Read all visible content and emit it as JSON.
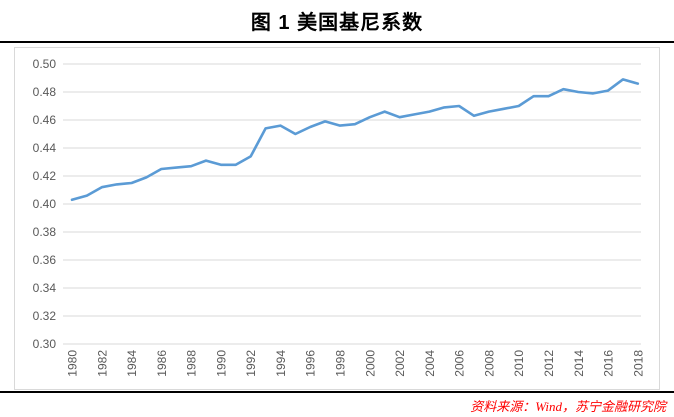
{
  "page": {
    "title": "图 1 美国基尼系数",
    "source": "资料来源：Wind，苏宁金融研究院"
  },
  "chart_data": {
    "type": "line",
    "title": "图 1 美国基尼系数",
    "x": [
      1980,
      1981,
      1982,
      1983,
      1984,
      1985,
      1986,
      1987,
      1988,
      1989,
      1990,
      1991,
      1992,
      1993,
      1994,
      1995,
      1996,
      1997,
      1998,
      1999,
      2000,
      2001,
      2002,
      2003,
      2004,
      2005,
      2006,
      2007,
      2008,
      2009,
      2010,
      2011,
      2012,
      2013,
      2014,
      2015,
      2016,
      2017,
      2018
    ],
    "series": [
      {
        "name": "美国基尼系数",
        "values": [
          0.403,
          0.406,
          0.412,
          0.414,
          0.415,
          0.419,
          0.425,
          0.426,
          0.427,
          0.431,
          0.428,
          0.428,
          0.434,
          0.454,
          0.456,
          0.45,
          0.455,
          0.459,
          0.456,
          0.457,
          0.462,
          0.466,
          0.462,
          0.464,
          0.466,
          0.469,
          0.47,
          0.463,
          0.466,
          0.468,
          0.47,
          0.477,
          0.477,
          0.482,
          0.48,
          0.479,
          0.481,
          0.489,
          0.486
        ]
      }
    ],
    "ylim": [
      0.3,
      0.5
    ],
    "ytick_step": 0.02,
    "xtick_every": 2,
    "grid": true,
    "legend": "none",
    "colors": {
      "line": "#5B9BD5",
      "gridline": "#D9D9D9",
      "axis_text": "#595959",
      "title_text": "#000000",
      "source_text": "#FF0000"
    }
  }
}
